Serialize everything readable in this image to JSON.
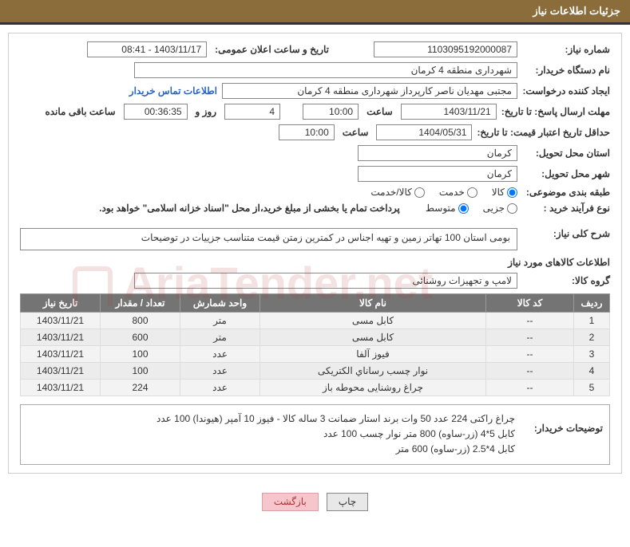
{
  "header": {
    "title": "جزئیات اطلاعات نیاز"
  },
  "fields": {
    "need_no_label": "شماره نیاز:",
    "need_no": "1103095192000087",
    "announce_label": "تاریخ و ساعت اعلان عمومی:",
    "announce_value": "1403/11/17 - 08:41",
    "buyer_org_label": "نام دستگاه خریدار:",
    "buyer_org": "شهرداری منطقه 4 کرمان",
    "requester_label": "ایجاد کننده درخواست:",
    "requester": "مجتبی مهدیان ناصر کارپرداز شهرداری منطقه 4 کرمان",
    "contact_link": "اطلاعات تماس خریدار",
    "deadline_label": "مهلت ارسال پاسخ: تا تاریخ:",
    "deadline_date": "1403/11/21",
    "hour_label": "ساعت",
    "deadline_hour": "10:00",
    "days_label": "روز و",
    "days_value": "4",
    "remain_time": "00:36:35",
    "remain_label": "ساعت باقی مانده",
    "validity_label": "حداقل تاریخ اعتبار قیمت: تا تاریخ:",
    "validity_date": "1404/05/31",
    "validity_hour": "10:00",
    "province_label": "استان محل تحویل:",
    "province": "کرمان",
    "city_label": "شهر محل تحویل:",
    "city": "کرمان",
    "category_label": "طبقه بندی موضوعی:",
    "cat_goods": "کالا",
    "cat_service": "خدمت",
    "cat_both": "کالا/خدمت",
    "process_label": "نوع فرآیند خرید :",
    "proc_small": "جزیی",
    "proc_medium": "متوسط",
    "payment_note": "پرداخت تمام یا بخشی از مبلغ خرید،از محل \"اسناد خزانه اسلامی\" خواهد بود.",
    "desc_label": "شرح کلی نیاز:",
    "desc_text": "بومی استان 100 تهاتر زمین و تهیه اجناس در کمترین زمتن قیمت متناسب جزییات در توضیحات",
    "items_header": "اطلاعات کالاهای مورد نیاز",
    "group_label": "گروه کالا:",
    "group_value": "لامپ و تجهیزات روشنائی",
    "buyer_notes_label": "توضیحات خریدار:",
    "notes_line1": "چراغ راکتی 224 عدد  50 وات برند استار ضمانت 3 ساله کالا  -  فیوز 10 آمپر (هیوندا) 100 عدد",
    "notes_line2": "کابل 5*4 (زر-ساوه) 800 متر          نوار چسب 100 عدد",
    "notes_line3": "کابل 4*2.5 (زر-ساوه) 600 متر"
  },
  "table": {
    "cols": {
      "row": "ردیف",
      "code": "کد کالا",
      "name": "نام کالا",
      "unit": "واحد شمارش",
      "qty": "تعداد / مقدار",
      "date": "تاریخ نیاز"
    },
    "rows": [
      {
        "n": "1",
        "code": "--",
        "name": "کابل مسی",
        "unit": "متر",
        "qty": "800",
        "date": "1403/11/21"
      },
      {
        "n": "2",
        "code": "--",
        "name": "کابل مسی",
        "unit": "متر",
        "qty": "600",
        "date": "1403/11/21"
      },
      {
        "n": "3",
        "code": "--",
        "name": "فیوز آلفا",
        "unit": "عدد",
        "qty": "100",
        "date": "1403/11/21"
      },
      {
        "n": "4",
        "code": "--",
        "name": "نوار چسب رساناي الکتریکی",
        "unit": "عدد",
        "qty": "100",
        "date": "1403/11/21"
      },
      {
        "n": "5",
        "code": "--",
        "name": "چراغ روشنایی محوطه باز",
        "unit": "عدد",
        "qty": "224",
        "date": "1403/11/21"
      }
    ]
  },
  "buttons": {
    "print": "چاپ",
    "back": "بازگشت"
  },
  "colors": {
    "header_bg": "#8a6d3b",
    "header_text": "#ffffff",
    "th_bg": "#747474",
    "link": "#2965c7",
    "btn_back_bg": "#f5c6cb"
  }
}
